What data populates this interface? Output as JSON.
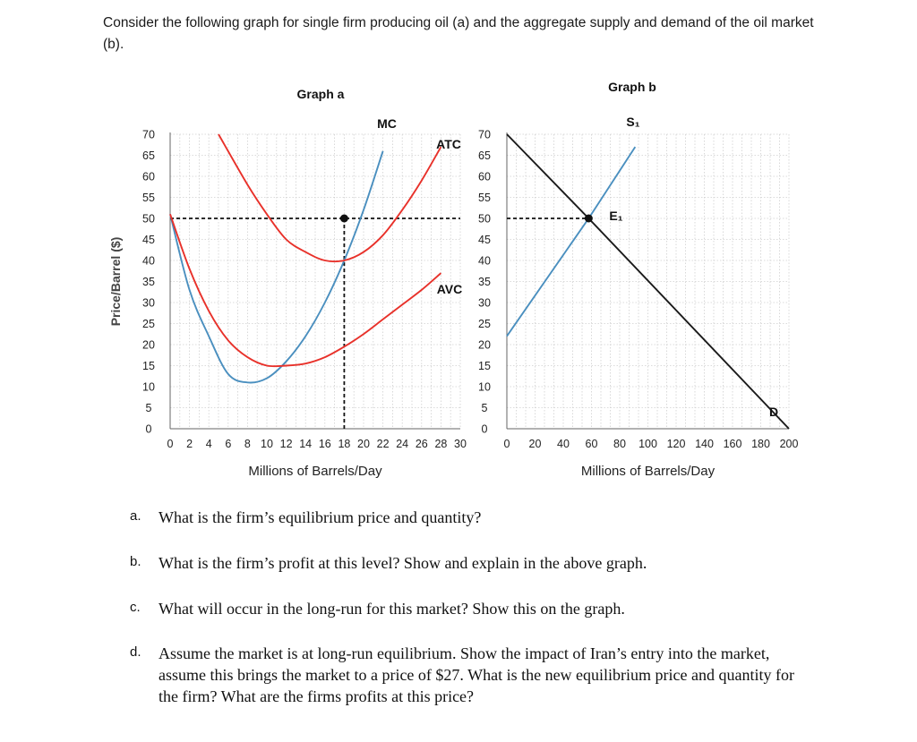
{
  "intro": "Consider the following graph for single firm producing oil (a) and the aggregate supply and demand of the oil market (b).",
  "chart_data": [
    {
      "type": "line",
      "title": "Graph a",
      "xlabel": "Millions of Barrels/Day",
      "ylabel": "Price/Barrel ($)",
      "xlim": [
        0,
        30
      ],
      "ylim": [
        0,
        70
      ],
      "x_ticks": [
        "0",
        "2",
        "4",
        "6",
        "8",
        "10",
        "12",
        "14",
        "16",
        "18",
        "20",
        "22",
        "24",
        "26",
        "28",
        "30"
      ],
      "y_ticks": [
        "0",
        "5",
        "10",
        "15",
        "20",
        "25",
        "30",
        "35",
        "40",
        "45",
        "50",
        "55",
        "60",
        "65",
        "70"
      ],
      "grid": true,
      "series": [
        {
          "name": "MC",
          "color": "#4a8fbf",
          "x": [
            0,
            2,
            4,
            6,
            8,
            10,
            12,
            14,
            16,
            18,
            20,
            22
          ],
          "y": [
            51,
            33,
            22,
            13,
            11,
            12,
            16,
            22,
            30,
            40,
            52,
            66
          ]
        },
        {
          "name": "ATC",
          "color": "#e8312a",
          "x": [
            5,
            8,
            10,
            12,
            14,
            16,
            18,
            20,
            22,
            24,
            26,
            28
          ],
          "y": [
            70,
            58,
            51,
            45,
            42,
            40,
            40,
            42,
            46,
            52,
            59,
            67
          ]
        },
        {
          "name": "AVC",
          "color": "#e8312a",
          "x": [
            0,
            2,
            4,
            6,
            8,
            10,
            12,
            14,
            16,
            18,
            20,
            22,
            24,
            26,
            28
          ],
          "y": [
            51,
            38,
            28,
            21,
            17,
            15,
            15,
            15.5,
            17,
            19.5,
            22.5,
            26,
            29.5,
            33,
            37
          ]
        }
      ],
      "points": [
        {
          "x": 18,
          "y": 50
        }
      ],
      "reference_lines": {
        "price": 50,
        "quantity": 18
      }
    },
    {
      "type": "line",
      "title": "Graph b",
      "xlabel": "Millions of Barrels/Day",
      "xlim": [
        0,
        200
      ],
      "ylim": [
        0,
        70
      ],
      "x_ticks": [
        "0",
        "20",
        "40",
        "60",
        "80",
        "100",
        "120",
        "140",
        "160",
        "180",
        "200"
      ],
      "y_ticks": [
        "0",
        "5",
        "10",
        "15",
        "20",
        "25",
        "30",
        "35",
        "40",
        "45",
        "50",
        "55",
        "60",
        "65",
        "70"
      ],
      "grid": true,
      "series": [
        {
          "name": "S₁",
          "color": "#4a8fbf",
          "x": [
            0,
            58,
            91
          ],
          "y": [
            22,
            50,
            67
          ]
        },
        {
          "name": "D",
          "color": "#1a1a1a",
          "x": [
            0,
            58,
            200
          ],
          "y": [
            70,
            50,
            0
          ]
        }
      ],
      "points": [
        {
          "x": 58,
          "y": 50,
          "label": "E₁"
        }
      ],
      "reference_lines": {
        "price": 50
      }
    }
  ],
  "questions": [
    {
      "letter": "a.",
      "text": "What is the firm’s equilibrium price and quantity?"
    },
    {
      "letter": "b.",
      "text": "What is the firm’s profit at this level? Show and explain in the above graph."
    },
    {
      "letter": "c.",
      "text": "What will occur in the long-run for this market? Show this on the graph."
    },
    {
      "letter": "d.",
      "text": "Assume the market is at long-run equilibrium. Show the impact of Iran’s entry into the market, assume this brings the market to a price of $27. What is the new equilibrium price and quantity for the firm? What are the firms profits at this price?"
    }
  ]
}
